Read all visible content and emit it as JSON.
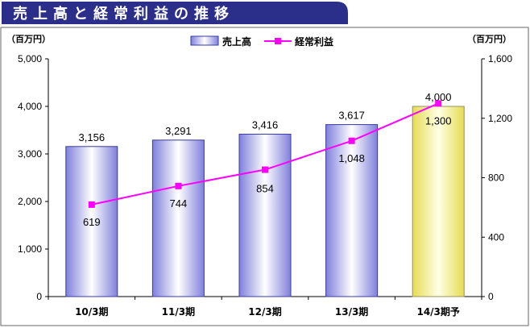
{
  "chart_data": {
    "type": "bar",
    "title": "売上高と経常利益の推移",
    "categories": [
      "10/3期",
      "11/3期",
      "12/3期",
      "13/3期",
      "14/3期予"
    ],
    "series": [
      {
        "name": "売上高",
        "type": "bar",
        "axis": "left",
        "values": [
          3156,
          3291,
          3416,
          3617,
          4000
        ],
        "labels": [
          "3,156",
          "3,291",
          "3,416",
          "3,617",
          "4,000"
        ]
      },
      {
        "name": "経常利益",
        "type": "line",
        "axis": "right",
        "values": [
          619,
          744,
          854,
          1048,
          1300
        ],
        "labels": [
          "619",
          "744",
          "854",
          "1,048",
          "1,300"
        ]
      }
    ],
    "y_left": {
      "unit": "（百万円）",
      "range": [
        0,
        5000
      ],
      "ticks": [
        "0",
        "1,000",
        "2,000",
        "3,000",
        "4,000",
        "5,000"
      ]
    },
    "y_right": {
      "unit": "（百万円）",
      "range": [
        0,
        1600
      ],
      "ticks": [
        "0",
        "400",
        "800",
        "1,200",
        "1,600"
      ]
    },
    "legend_position": "top-center",
    "grid": false,
    "colors": {
      "title_bg": "#2b2f8a",
      "bar_edge": "#3a3aa0",
      "bar_dark": "#8a8ae0",
      "bar_light": "#ffffff",
      "forecast_dark": "#e8e060",
      "forecast_light": "#ffffe0",
      "line": "#ff00ff"
    }
  }
}
